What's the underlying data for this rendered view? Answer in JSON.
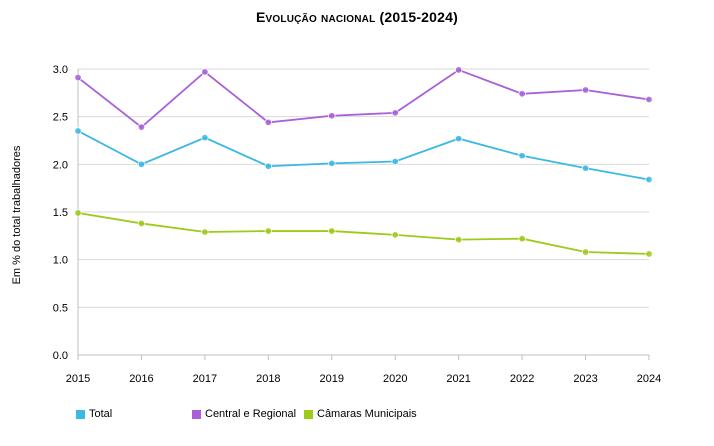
{
  "chart_data": {
    "type": "line",
    "title": "Evolução nacional (2015-2024)",
    "xlabel": "",
    "ylabel": "Em % do total trabalhadores",
    "categories": [
      "2015",
      "2016",
      "2017",
      "2018",
      "2019",
      "2020",
      "2021",
      "2022",
      "2023",
      "2024"
    ],
    "ylim": [
      0,
      3.0
    ],
    "yticks": [
      "0.0",
      "0.5",
      "1.0",
      "1.5",
      "2.0",
      "2.5",
      "3.0"
    ],
    "grid": true,
    "legend_position": "bottom-left",
    "series": [
      {
        "name": "Total",
        "color": "#3bb8e3",
        "values": [
          2.35,
          2.0,
          2.28,
          1.98,
          2.01,
          2.03,
          2.27,
          2.09,
          1.96,
          1.84
        ]
      },
      {
        "name": "Central e Regional",
        "color": "#a95fd8",
        "values": [
          2.91,
          2.39,
          2.97,
          2.44,
          2.51,
          2.54,
          2.99,
          2.74,
          2.78,
          2.68
        ]
      },
      {
        "name": "Câmaras Municipais",
        "color": "#9ccb18",
        "values": [
          1.49,
          1.38,
          1.29,
          1.3,
          1.3,
          1.26,
          1.21,
          1.22,
          1.08,
          1.06
        ]
      }
    ]
  }
}
